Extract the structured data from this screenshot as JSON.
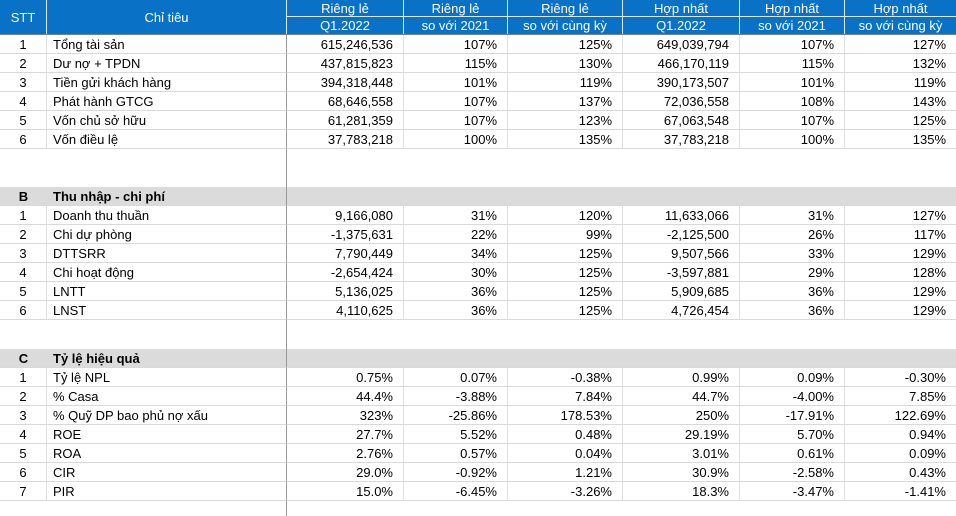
{
  "colors": {
    "header_bg": "#0a72c6",
    "header_text": "#ffffff",
    "section_band_bg": "#dbdbdb",
    "gridline": "#d9d9d9",
    "column_divider": "#999999"
  },
  "table": {
    "header": {
      "stt": "STT",
      "chi_tieu": "Chỉ tiêu",
      "groups": [
        {
          "top": "Riêng lẻ",
          "bottom": "Q1.2022"
        },
        {
          "top": "Riêng lẻ",
          "bottom": "so với 2021"
        },
        {
          "top": "Riêng lẻ",
          "bottom": "so với cùng kỳ"
        },
        {
          "top": "Hợp nhất",
          "bottom": "Q1.2022"
        },
        {
          "top": "Hợp nhất",
          "bottom": "so với 2021"
        },
        {
          "top": "Hợp nhất",
          "bottom": "so với cùng kỳ"
        }
      ]
    },
    "sections": [
      {
        "letter": "",
        "title": "",
        "rows": [
          {
            "stt": "1",
            "label": "Tổng tài sản",
            "values": [
              "615,246,536",
              "107%",
              "125%",
              "649,039,794",
              "107%",
              "127%"
            ]
          },
          {
            "stt": "2",
            "label": "Dư nợ + TPDN",
            "values": [
              "437,815,823",
              "115%",
              "130%",
              "466,170,119",
              "115%",
              "132%"
            ]
          },
          {
            "stt": "3",
            "label": "Tiền gửi khách hàng",
            "values": [
              "394,318,448",
              "101%",
              "119%",
              "390,173,507",
              "101%",
              "119%"
            ]
          },
          {
            "stt": "4",
            "label": "Phát hành GTCG",
            "values": [
              "68,646,558",
              "107%",
              "137%",
              "72,036,558",
              "108%",
              "143%"
            ]
          },
          {
            "stt": "5",
            "label": "Vốn chủ sở hữu",
            "values": [
              "61,281,359",
              "107%",
              "123%",
              "67,063,548",
              "107%",
              "125%"
            ]
          },
          {
            "stt": "6",
            "label": "Vốn điều lệ",
            "values": [
              "37,783,218",
              "100%",
              "135%",
              "37,783,218",
              "100%",
              "135%"
            ]
          }
        ]
      },
      {
        "letter": "B",
        "title": "Thu nhập - chi phí",
        "rows": [
          {
            "stt": "1",
            "label": "Doanh thu thuần",
            "values": [
              "9,166,080",
              "31%",
              "120%",
              "11,633,066",
              "31%",
              "127%"
            ]
          },
          {
            "stt": "2",
            "label": "Chi dự phòng",
            "values": [
              "-1,375,631",
              "22%",
              "99%",
              "-2,125,500",
              "26%",
              "117%"
            ]
          },
          {
            "stt": "3",
            "label": "DTTSRR",
            "values": [
              "7,790,449",
              "34%",
              "125%",
              "9,507,566",
              "33%",
              "129%"
            ]
          },
          {
            "stt": "4",
            "label": "Chi hoạt động",
            "values": [
              "-2,654,424",
              "30%",
              "125%",
              "-3,597,881",
              "29%",
              "128%"
            ]
          },
          {
            "stt": "5",
            "label": "LNTT",
            "values": [
              "5,136,025",
              "36%",
              "125%",
              "5,909,685",
              "36%",
              "129%"
            ]
          },
          {
            "stt": "6",
            "label": "LNST",
            "values": [
              "4,110,625",
              "36%",
              "125%",
              "4,726,454",
              "36%",
              "129%"
            ]
          }
        ]
      },
      {
        "letter": "C",
        "title": "Tỷ lệ hiệu quả",
        "rows": [
          {
            "stt": "1",
            "label": "Tỷ lệ NPL",
            "values": [
              "0.75%",
              "0.07%",
              "-0.38%",
              "0.99%",
              "0.09%",
              "-0.30%"
            ]
          },
          {
            "stt": "2",
            "label": "% Casa",
            "values": [
              "44.4%",
              "-3.88%",
              "7.84%",
              "44.7%",
              "-4.00%",
              "7.85%"
            ]
          },
          {
            "stt": "3",
            "label": "% Quỹ DP bao phủ nợ xấu",
            "values": [
              "323%",
              "-25.86%",
              "178.53%",
              "250%",
              "-17.91%",
              "122.69%"
            ]
          },
          {
            "stt": "4",
            "label": "ROE",
            "values": [
              "27.7%",
              "5.52%",
              "0.48%",
              "29.19%",
              "5.70%",
              "0.94%"
            ]
          },
          {
            "stt": "5",
            "label": "ROA",
            "values": [
              "2.76%",
              "0.57%",
              "0.04%",
              "3.01%",
              "0.61%",
              "0.09%"
            ]
          },
          {
            "stt": "6",
            "label": "CIR",
            "values": [
              "29.0%",
              "-0.92%",
              "1.21%",
              "30.9%",
              "-2.58%",
              "0.43%"
            ]
          },
          {
            "stt": "7",
            "label": "PIR",
            "values": [
              "15.0%",
              "-6.45%",
              "-3.26%",
              "18.3%",
              "-3.47%",
              "-1.41%"
            ]
          }
        ]
      }
    ]
  }
}
